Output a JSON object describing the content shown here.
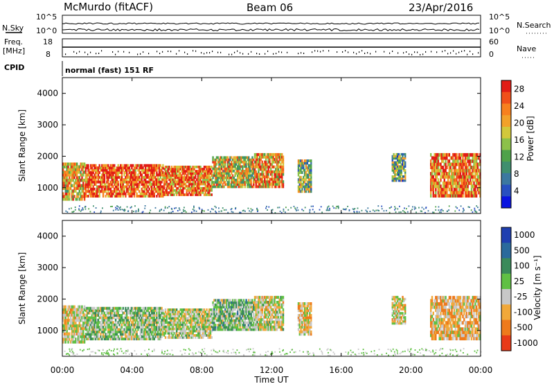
{
  "header": {
    "station": "McMurdo (fitACF)",
    "beam": "Beam 06",
    "date": "23/Apr/2016"
  },
  "top_panel": {
    "left_label_1": "N.Sky",
    "left_label_2": "Freq.",
    "left_label_2b": "[MHz]",
    "left_label_3": "CPID",
    "right_label_1": "N.Search",
    "right_label_2": "Nave",
    "nsky_ticks": [
      "10^5",
      "10^0"
    ],
    "nsearch_ticks": [
      "10^5",
      "10^0"
    ],
    "freq_ticks": [
      "18",
      "8"
    ],
    "nave_ticks": [
      "60",
      "0"
    ],
    "cpid_text": "normal (fast) 151 RF"
  },
  "chart_data": [
    {
      "type": "heatmap",
      "title": "",
      "xlabel": "",
      "ylabel": "Slant Range [km]",
      "xlim": [
        0,
        24
      ],
      "ylim": [
        180,
        4500
      ],
      "y_ticks": [
        1000,
        2000,
        3000,
        4000
      ],
      "colorbar": {
        "label": "Power [dB]",
        "range": [
          0,
          30
        ],
        "ticks": [
          "4",
          "8",
          "12",
          "16",
          "20",
          "24",
          "28"
        ],
        "colors": [
          "#0a14e0",
          "#2850c0",
          "#3c78a0",
          "#3f8f6e",
          "#4fa24a",
          "#8cc14a",
          "#d2c83c",
          "#f2a12a",
          "#f7801e",
          "#f0501a",
          "#e11d16"
        ]
      },
      "echo_regions": [
        {
          "t0": 0.0,
          "t1": 1.3,
          "r0": 600,
          "r1": 1800,
          "mean_db": 20
        },
        {
          "t0": 1.3,
          "t1": 5.8,
          "r0": 700,
          "r1": 1750,
          "mean_db": 26
        },
        {
          "t0": 5.8,
          "t1": 8.6,
          "r0": 750,
          "r1": 1700,
          "mean_db": 24
        },
        {
          "t0": 8.6,
          "t1": 11.0,
          "r0": 1000,
          "r1": 2000,
          "mean_db": 18
        },
        {
          "t0": 11.0,
          "t1": 12.7,
          "r0": 1000,
          "r1": 2100,
          "mean_db": 22
        },
        {
          "t0": 13.5,
          "t1": 14.3,
          "r0": 850,
          "r1": 1900,
          "mean_db": 14
        },
        {
          "t0": 18.9,
          "t1": 19.7,
          "r0": 1200,
          "r1": 2100,
          "mean_db": 12
        },
        {
          "t0": 21.1,
          "t1": 24.0,
          "r0": 700,
          "r1": 2100,
          "mean_db": 24
        }
      ]
    },
    {
      "type": "heatmap",
      "title": "",
      "xlabel": "Time UT",
      "ylabel": "Slant Range [km]",
      "xlim": [
        0,
        24
      ],
      "ylim": [
        180,
        4500
      ],
      "x_ticks": [
        "00:00",
        "04:00",
        "08:00",
        "12:00",
        "16:00",
        "20:00",
        "00:00"
      ],
      "y_ticks": [
        1000,
        2000,
        3000,
        4000
      ],
      "colorbar": {
        "label": "Velocity [m s⁻¹]",
        "range": [
          -1200,
          1200
        ],
        "ticks": [
          "1000",
          "500",
          "100",
          "25",
          "-25",
          "-100",
          "-500",
          "-1000"
        ],
        "colors": [
          "#1f3fb0",
          "#2a6a9c",
          "#3a8a5a",
          "#60c044",
          "#c8c8c8",
          "#f1a83a",
          "#ee7a1c",
          "#e83a18"
        ]
      },
      "echo_regions": [
        {
          "t0": 0.0,
          "t1": 1.3,
          "r0": 600,
          "r1": 1800,
          "mean_vel": -200
        },
        {
          "t0": 1.3,
          "t1": 5.8,
          "r0": 700,
          "r1": 1750,
          "mean_vel": 50
        },
        {
          "t0": 5.8,
          "t1": 8.6,
          "r0": 750,
          "r1": 1700,
          "mean_vel": -80
        },
        {
          "t0": 8.6,
          "t1": 11.0,
          "r0": 1000,
          "r1": 2000,
          "mean_vel": 150
        },
        {
          "t0": 11.0,
          "t1": 12.7,
          "r0": 1000,
          "r1": 2100,
          "mean_vel": -150
        },
        {
          "t0": 13.5,
          "t1": 14.3,
          "r0": 850,
          "r1": 1900,
          "mean_vel": -300
        },
        {
          "t0": 18.9,
          "t1": 19.7,
          "r0": 1200,
          "r1": 2100,
          "mean_vel": -200
        },
        {
          "t0": 21.1,
          "t1": 24.0,
          "r0": 700,
          "r1": 2100,
          "mean_vel": -400
        }
      ]
    }
  ]
}
